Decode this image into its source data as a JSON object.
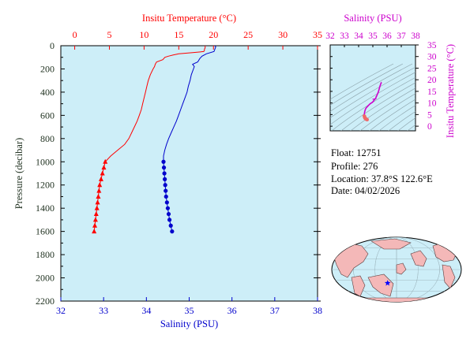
{
  "colors": {
    "temperature": "#ff0000",
    "salinity": "#0000cc",
    "inset_axis": "#cc00cc",
    "plot_bg": "#cdeef8",
    "pressure_axis": "#223322",
    "land": "#f4b8b8",
    "ocean": "#cdeef8",
    "float_marker": "#0000ff"
  },
  "info": {
    "float_label": "Float:",
    "float_value": "12751",
    "profile_label": "Profile:",
    "profile_value": "276",
    "location_label": "Location:",
    "location_value": "37.8°S  122.6°E",
    "date_label": "Date:",
    "date_value": "04/02/2026"
  },
  "map": {
    "marker_icon": "star-icon",
    "float_lon": 122.6,
    "float_lat": -37.8
  },
  "chart_data": [
    {
      "type": "line",
      "y_axis_label": "Pressure (decibar)",
      "y_ticks": [
        0,
        200,
        400,
        600,
        800,
        1000,
        1200,
        1400,
        1600,
        1800,
        2000,
        2200
      ],
      "ylim": [
        2200,
        0
      ],
      "grid": false,
      "temperature_axis": {
        "label": "Insitu Temperature (°C)",
        "ticks": [
          0,
          5,
          10,
          15,
          20,
          25,
          30,
          35
        ],
        "xlim": [
          -2,
          35
        ]
      },
      "salinity_axis": {
        "label": "Salinity (PSU)",
        "ticks": [
          32,
          33,
          34,
          35,
          36,
          37,
          38
        ],
        "xlim": [
          32,
          38
        ]
      },
      "series": [
        {
          "variable": "temperature",
          "pressure": [
            0,
            5,
            10,
            20,
            30,
            40,
            50,
            60,
            70,
            80,
            90,
            100,
            120,
            140,
            160,
            180,
            200,
            250,
            300,
            350,
            400,
            450,
            500,
            550,
            600,
            650,
            700,
            750,
            800,
            850,
            900,
            950,
            1000,
            1050,
            1100,
            1150,
            1200,
            1250,
            1300,
            1350,
            1400,
            1450,
            1500,
            1550,
            1600
          ],
          "values": [
            18.8,
            18.8,
            18.8,
            18.8,
            18.7,
            18.7,
            18.6,
            17.0,
            15.0,
            14.2,
            13.5,
            13.0,
            12.7,
            11.8,
            11.6,
            11.5,
            11.3,
            10.9,
            10.6,
            10.4,
            10.2,
            10.0,
            9.8,
            9.6,
            9.3,
            9.0,
            8.6,
            8.2,
            7.8,
            7.2,
            6.2,
            5.2,
            4.4,
            4.2,
            4.0,
            3.8,
            3.6,
            3.5,
            3.4,
            3.3,
            3.2,
            3.1,
            3.0,
            2.9,
            2.8
          ]
        },
        {
          "variable": "salinity",
          "pressure": [
            0,
            10,
            30,
            50,
            70,
            90,
            110,
            140,
            160,
            180,
            200,
            250,
            300,
            350,
            400,
            450,
            500,
            550,
            600,
            650,
            700,
            750,
            800,
            850,
            900,
            950,
            1000,
            1050,
            1100,
            1150,
            1200,
            1250,
            1300,
            1350,
            1400,
            1450,
            1500,
            1550,
            1600
          ],
          "values": [
            35.6,
            35.62,
            35.6,
            35.58,
            35.4,
            35.3,
            35.25,
            35.2,
            35.08,
            35.12,
            35.1,
            35.05,
            35.02,
            34.98,
            34.95,
            34.9,
            34.85,
            34.8,
            34.75,
            34.7,
            34.64,
            34.58,
            34.52,
            34.47,
            34.43,
            34.4,
            34.4,
            34.41,
            34.42,
            34.43,
            34.44,
            34.45,
            34.46,
            34.48,
            34.5,
            34.52,
            34.54,
            34.57,
            34.6
          ]
        }
      ],
      "markers_from_pressure": 1000
    },
    {
      "type": "scatter",
      "x_axis_label": "Salinity (PSU)",
      "y_axis_label": "Insitu Temperature (°C)",
      "x_ticks": [
        32,
        33,
        34,
        35,
        36,
        37,
        38
      ],
      "y_ticks": [
        0,
        5,
        10,
        15,
        20,
        25,
        30,
        35
      ],
      "xlim": [
        32,
        38
      ],
      "ylim": [
        -2,
        35
      ],
      "contours": "density (sigma) lines"
    }
  ]
}
